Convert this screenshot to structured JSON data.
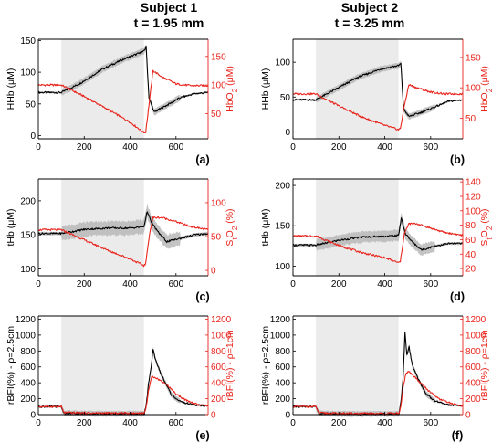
{
  "columns": [
    {
      "subject": "Subject 1",
      "thickness": "t = 1.95 mm"
    },
    {
      "subject": "Subject 2",
      "thickness": "t = 3.25 mm"
    }
  ],
  "colors": {
    "left_series": "#000000",
    "right_series": "#e8241c",
    "shade": "#ebebeb",
    "band": "#b9b9b9"
  },
  "chart_data": [
    {
      "panel": "(a)",
      "type": "line",
      "grid": false,
      "shaded_interval": [
        100,
        460
      ],
      "xlim": [
        0,
        740
      ],
      "xticks": [
        0,
        200,
        400,
        600
      ],
      "ylabel_left": "HHb (μM)",
      "ylim_left": [
        -5,
        152
      ],
      "yticks_left": [
        0,
        50,
        100,
        150
      ],
      "ylabel_right": "HbO2 (μM)",
      "ylim_right": [
        6,
        180
      ],
      "yticks_right": [
        50,
        100,
        150
      ],
      "series": [
        {
          "axis": "left",
          "band": 6,
          "points": [
            [
              0,
              68
            ],
            [
              100,
              68
            ],
            [
              180,
              82
            ],
            [
              280,
              105
            ],
            [
              380,
              122
            ],
            [
              440,
              130
            ],
            [
              460,
              133
            ],
            [
              470,
              140
            ],
            [
              482,
              60
            ],
            [
              505,
              37
            ],
            [
              560,
              48
            ],
            [
              620,
              60
            ],
            [
              680,
              66
            ],
            [
              740,
              68
            ]
          ]
        },
        {
          "axis": "right",
          "band": 0,
          "points": [
            [
              0,
              100
            ],
            [
              100,
              100
            ],
            [
              200,
              80
            ],
            [
              300,
              58
            ],
            [
              400,
              35
            ],
            [
              460,
              17
            ],
            [
              468,
              18
            ],
            [
              485,
              75
            ],
            [
              500,
              125
            ],
            [
              540,
              114
            ],
            [
              600,
              102
            ],
            [
              660,
              99
            ],
            [
              740,
              99
            ]
          ]
        }
      ]
    },
    {
      "panel": "(b)",
      "type": "line",
      "grid": false,
      "shaded_interval": [
        100,
        460
      ],
      "xlim": [
        0,
        740
      ],
      "xticks": [
        0,
        200,
        400,
        600
      ],
      "ylabel_left": "HHb (μM)",
      "ylim_left": [
        -10,
        133
      ],
      "yticks_left": [
        0,
        50,
        100
      ],
      "ylabel_right": "HbO2 (μM)",
      "ylim_right": [
        16,
        180
      ],
      "yticks_right": [
        50,
        100,
        150
      ],
      "series": [
        {
          "axis": "left",
          "band": 5,
          "points": [
            [
              0,
              46
            ],
            [
              100,
              46
            ],
            [
              180,
              60
            ],
            [
              280,
              78
            ],
            [
              380,
              90
            ],
            [
              440,
              94
            ],
            [
              460,
              95
            ],
            [
              470,
              98
            ],
            [
              482,
              33
            ],
            [
              505,
              22
            ],
            [
              560,
              28
            ],
            [
              620,
              36
            ],
            [
              680,
              44
            ],
            [
              740,
              46
            ]
          ]
        },
        {
          "axis": "right",
          "band": 0,
          "points": [
            [
              0,
              90
            ],
            [
              100,
              90
            ],
            [
              200,
              70
            ],
            [
              300,
              52
            ],
            [
              400,
              38
            ],
            [
              460,
              31
            ],
            [
              468,
              33
            ],
            [
              485,
              70
            ],
            [
              505,
              105
            ],
            [
              540,
              100
            ],
            [
              600,
              93
            ],
            [
              660,
              90
            ],
            [
              740,
              90
            ]
          ]
        }
      ]
    },
    {
      "panel": "(c)",
      "type": "line",
      "grid": false,
      "shaded_interval": [
        100,
        460
      ],
      "xlim": [
        0,
        740
      ],
      "xticks": [
        0,
        200,
        400,
        600
      ],
      "ylabel_left": "tHb (μM)",
      "ylim_left": [
        90,
        232
      ],
      "yticks_left": [
        100,
        150,
        200
      ],
      "ylabel_right": "StO2 (%)",
      "ylim_right": [
        -8,
        135
      ],
      "yticks_right": [
        0,
        50,
        100
      ],
      "series": [
        {
          "axis": "left",
          "band": 12,
          "points": [
            [
              0,
              152
            ],
            [
              100,
              152
            ],
            [
              150,
              155
            ],
            [
              200,
              158
            ],
            [
              300,
              160
            ],
            [
              400,
              160
            ],
            [
              460,
              162
            ],
            [
              475,
              185
            ],
            [
              490,
              170
            ],
            [
              520,
              155
            ],
            [
              560,
              140
            ],
            [
              620,
              145
            ],
            [
              680,
              150
            ],
            [
              740,
              152
            ]
          ]
        },
        {
          "axis": "right",
          "band": 0,
          "points": [
            [
              0,
              60
            ],
            [
              100,
              60
            ],
            [
              200,
              45
            ],
            [
              300,
              30
            ],
            [
              400,
              17
            ],
            [
              460,
              7
            ],
            [
              468,
              10
            ],
            [
              485,
              55
            ],
            [
              500,
              78
            ],
            [
              540,
              78
            ],
            [
              600,
              72
            ],
            [
              660,
              65
            ],
            [
              740,
              60
            ]
          ]
        }
      ]
    },
    {
      "panel": "(d)",
      "type": "line",
      "grid": false,
      "shaded_interval": [
        100,
        460
      ],
      "xlim": [
        0,
        740
      ],
      "xticks": [
        0,
        200,
        400,
        600
      ],
      "ylabel_left": "tHb (μM)",
      "ylim_left": [
        88,
        208
      ],
      "yticks_left": [
        100,
        150,
        200
      ],
      "ylabel_right": "StO2 (%)",
      "ylim_right": [
        10,
        144
      ],
      "yticks_right": [
        20,
        40,
        60,
        80,
        100,
        120,
        140
      ],
      "series": [
        {
          "axis": "left",
          "band": 8,
          "points": [
            [
              0,
              126
            ],
            [
              100,
              126
            ],
            [
              200,
              132
            ],
            [
              300,
              136
            ],
            [
              400,
              137
            ],
            [
              460,
              138
            ],
            [
              472,
              160
            ],
            [
              490,
              140
            ],
            [
              520,
              130
            ],
            [
              560,
              120
            ],
            [
              620,
              125
            ],
            [
              680,
              128
            ],
            [
              740,
              128
            ]
          ]
        },
        {
          "axis": "right",
          "band": 0,
          "points": [
            [
              0,
              65
            ],
            [
              100,
              65
            ],
            [
              200,
              52
            ],
            [
              300,
              42
            ],
            [
              400,
              35
            ],
            [
              460,
              28
            ],
            [
              468,
              30
            ],
            [
              485,
              68
            ],
            [
              505,
              82
            ],
            [
              540,
              82
            ],
            [
              600,
              76
            ],
            [
              660,
              70
            ],
            [
              740,
              66
            ]
          ]
        }
      ]
    },
    {
      "panel": "(e)",
      "type": "line",
      "grid": false,
      "shaded_interval": [
        100,
        460
      ],
      "xlim": [
        0,
        740
      ],
      "xticks": [
        0,
        200,
        400,
        600
      ],
      "ylabel_left": "rBFI(%) - ρ=2.5cm",
      "ylim_left": [
        0,
        1240
      ],
      "yticks_left": [
        0,
        200,
        400,
        600,
        800,
        1000,
        1200
      ],
      "ylabel_right": "rBFI(%) - ρ=1cm",
      "ylim_right": [
        0,
        1240
      ],
      "yticks_right": [
        0,
        200,
        400,
        600,
        800,
        1000,
        1200
      ],
      "series": [
        {
          "axis": "left",
          "band": 40,
          "points": [
            [
              0,
              100
            ],
            [
              100,
              100
            ],
            [
              112,
              18
            ],
            [
              200,
              12
            ],
            [
              300,
              10
            ],
            [
              400,
              10
            ],
            [
              462,
              12
            ],
            [
              470,
              120
            ],
            [
              480,
              380
            ],
            [
              492,
              600
            ],
            [
              500,
              820
            ],
            [
              510,
              700
            ],
            [
              530,
              540
            ],
            [
              550,
              420
            ],
            [
              580,
              250
            ],
            [
              620,
              160
            ],
            [
              680,
              120
            ],
            [
              740,
              110
            ]
          ]
        },
        {
          "axis": "right",
          "band": 0,
          "points": [
            [
              0,
              100
            ],
            [
              100,
              100
            ],
            [
              112,
              25
            ],
            [
              200,
              20
            ],
            [
              300,
              18
            ],
            [
              400,
              18
            ],
            [
              462,
              20
            ],
            [
              470,
              90
            ],
            [
              480,
              300
            ],
            [
              495,
              480
            ],
            [
              510,
              470
            ],
            [
              530,
              430
            ],
            [
              560,
              380
            ],
            [
              600,
              260
            ],
            [
              650,
              170
            ],
            [
              700,
              120
            ],
            [
              740,
              110
            ]
          ]
        }
      ]
    },
    {
      "panel": "(f)",
      "type": "line",
      "grid": false,
      "shaded_interval": [
        100,
        460
      ],
      "xlim": [
        0,
        740
      ],
      "xticks": [
        0,
        200,
        400,
        600
      ],
      "ylabel_left": "rBFI(%) - ρ=2.5cm",
      "ylim_left": [
        0,
        1240
      ],
      "yticks_left": [
        0,
        200,
        400,
        600,
        800,
        1000,
        1200
      ],
      "ylabel_right": "rBFI(%) - ρ=1cm",
      "ylim_right": [
        0,
        1240
      ],
      "yticks_right": [
        0,
        200,
        400,
        600,
        800,
        1000,
        1200
      ],
      "series": [
        {
          "axis": "left",
          "band": 40,
          "points": [
            [
              0,
              100
            ],
            [
              100,
              100
            ],
            [
              112,
              15
            ],
            [
              200,
              10
            ],
            [
              300,
              8
            ],
            [
              400,
              8
            ],
            [
              462,
              10
            ],
            [
              470,
              150
            ],
            [
              480,
              450
            ],
            [
              488,
              1040
            ],
            [
              496,
              750
            ],
            [
              506,
              850
            ],
            [
              520,
              620
            ],
            [
              545,
              450
            ],
            [
              580,
              260
            ],
            [
              620,
              170
            ],
            [
              680,
              120
            ],
            [
              740,
              110
            ]
          ]
        },
        {
          "axis": "right",
          "band": 0,
          "points": [
            [
              0,
              100
            ],
            [
              100,
              100
            ],
            [
              112,
              20
            ],
            [
              200,
              15
            ],
            [
              300,
              14
            ],
            [
              400,
              14
            ],
            [
              462,
              15
            ],
            [
              470,
              100
            ],
            [
              480,
              330
            ],
            [
              492,
              520
            ],
            [
              505,
              540
            ],
            [
              520,
              500
            ],
            [
              550,
              420
            ],
            [
              590,
              300
            ],
            [
              640,
              190
            ],
            [
              700,
              130
            ],
            [
              740,
              110
            ]
          ]
        }
      ]
    }
  ]
}
